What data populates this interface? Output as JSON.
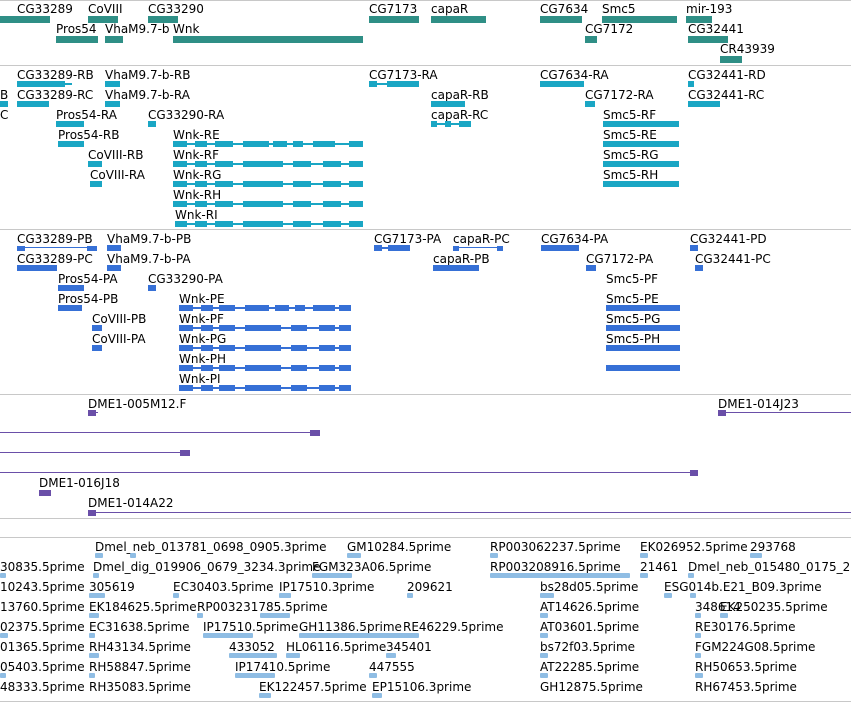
{
  "colors": {
    "gene": "#2f8f86",
    "transcript_ra": "#1aa6c4",
    "transcript_pa": "#3670d6",
    "clone": "#6a4fa8",
    "est": "#8fbde4",
    "separator": "#c8c8c8",
    "text": "#000000"
  },
  "tracks": {
    "genes": {
      "labels": [
        "CG33289",
        "CoVIII",
        "CG33290",
        "CG7173",
        "capaR",
        "CG7634",
        "Smc5",
        "mir-193",
        "Pros54",
        "VhaM9.7-b",
        "Wnk",
        "CG7172",
        "CG32441",
        "CR43939"
      ]
    },
    "transcripts_r": {
      "labels": [
        "CG33289-RB",
        "VhaM9.7-b-RB",
        "CG7173-RA",
        "CG7634-RA",
        "CG32441-RD",
        "B",
        "CG33289-RC",
        "VhaM9.7-b-RA",
        "capaR-RB",
        "CG7172-RA",
        "CG32441-RC",
        "C",
        "Pros54-RA",
        "CG33290-RA",
        "capaR-RC",
        "Smc5-RF",
        "Pros54-RB",
        "Wnk-RE",
        "Smc5-RE",
        "CoVIII-RB",
        "Wnk-RF",
        "Smc5-RG",
        "CoVIII-RA",
        "Wnk-RG",
        "Smc5-RH",
        "Wnk-RH",
        "Wnk-RI"
      ]
    },
    "transcripts_p": {
      "labels": [
        "CG33289-PB",
        "VhaM9.7-b-PB",
        "CG7173-PA",
        "capaR-PC",
        "CG7634-PA",
        "CG32441-PD",
        "CG33289-PC",
        "VhaM9.7-b-PA",
        "capaR-PB",
        "CG7172-PA",
        "CG32441-PC",
        "Pros54-PA",
        "CG33290-PA",
        "Pros54-PB",
        "Wnk-PE",
        "Smc5-PF",
        "Smc5-PE",
        "CoVIII-PB",
        "Wnk-PF",
        "Smc5-PG",
        "CoVIII-PA",
        "Wnk-PG",
        "Smc5-PH",
        "Wnk-PH",
        "Wnk-PI"
      ]
    },
    "clones": {
      "labels": [
        "DME1-005M12.F",
        "DME1-014J23",
        "DME1-016J18",
        "DME1-014A22"
      ]
    },
    "ests": {
      "labels": [
        "Dmel_neb_013781_0698_0905.3prime",
        "GM10284.5prime",
        "RP003062237.5prime",
        "EK026952.5prime",
        "293768",
        "30835.5prime",
        "Dmel_dig_019906_0679_3234.3prime",
        "FGM323A06.5prime",
        "RP003208916.5prime",
        "21461",
        "Dmel_neb_015480_0175_2",
        "10243.5prime",
        "305619",
        "EC30403.5prime",
        "IP17510.3prime",
        "209621",
        "bs28d05.5prime",
        "ESG014b.E21_B09.3prime",
        "13760.5prime",
        "EK184625.5prime",
        "RP003231785.5prime",
        "AT14626.5prime",
        "348614",
        "EK250235.5prime",
        "02375.5prime",
        "EC31638.5prime",
        "IP17510.5prime",
        "GH11386.5prime",
        "RE46229.5prime",
        "AT03601.5prime",
        "RE30176.5prime",
        "01365.5prime",
        "RH43134.5prime",
        "433052",
        "HL06116.5prime",
        "345401",
        "bs72f03.5prime",
        "FGM224G08.5prime",
        "05403.5prime",
        "RH58847.5prime",
        "IP17410.5prime",
        "447555",
        "AT22285.5prime",
        "RH50653.5prime",
        "48333.5prime",
        "RH35083.5prime",
        "EK122457.5prime",
        "EP15106.3prime",
        "GH12875.5prime",
        "RH67453.5prime"
      ]
    }
  }
}
